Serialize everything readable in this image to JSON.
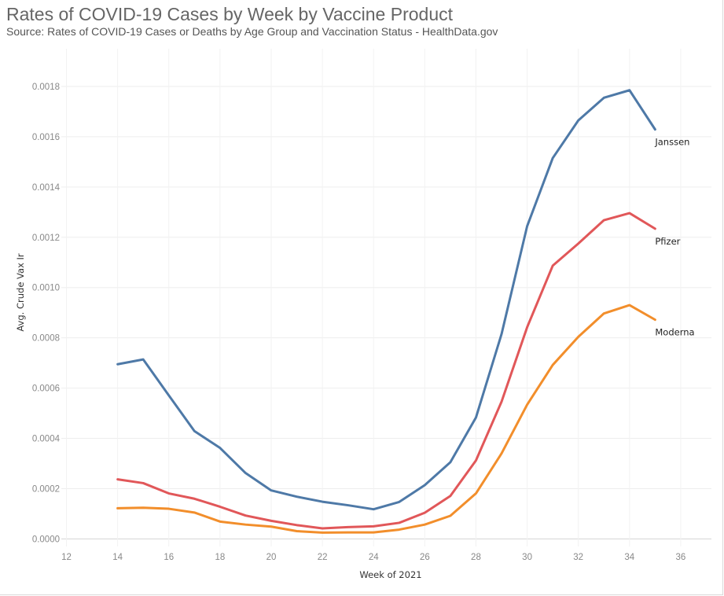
{
  "header": {
    "title": "Rates of COVID-19 Cases by Week by Vaccine Product",
    "subtitle": "Source: Rates of COVID-19 Cases or Deaths by Age Group and Vaccination Status - HealthData.gov"
  },
  "chart_data": {
    "type": "line",
    "title": "Rates of COVID-19 Cases by Week by Vaccine Product",
    "subtitle": "Source: Rates of COVID-19 Cases or Deaths by Age Group and Vaccination Status - HealthData.gov",
    "xlabel": "Week of 2021",
    "ylabel": "Avg. Crude Vax Ir",
    "xlim": [
      11.8,
      37.2
    ],
    "ylim": [
      -3e-05,
      0.00195
    ],
    "x_ticks": [
      12,
      14,
      16,
      18,
      20,
      22,
      24,
      26,
      28,
      30,
      32,
      34,
      36
    ],
    "y_ticks": [
      0.0,
      0.0002,
      0.0004,
      0.0006,
      0.0008,
      0.001,
      0.0012,
      0.0014,
      0.0016,
      0.0018
    ],
    "x_tick_labels": [
      "12",
      "14",
      "16",
      "18",
      "20",
      "22",
      "24",
      "26",
      "28",
      "30",
      "32",
      "34",
      "36"
    ],
    "y_tick_labels": [
      "0.0000",
      "0.0002",
      "0.0004",
      "0.0006",
      "0.0008",
      "0.0010",
      "0.0012",
      "0.0014",
      "0.0016",
      "0.0018"
    ],
    "grid": true,
    "legend": "direct labels at line ends",
    "x": [
      14,
      15,
      16,
      17,
      18,
      19,
      20,
      21,
      22,
      23,
      24,
      25,
      26,
      27,
      28,
      29,
      30,
      31,
      32,
      33,
      34,
      35
    ],
    "series": [
      {
        "name": "Janssen",
        "color": "#4e79a7",
        "values": [
          0.000695,
          0.000714,
          0.000571,
          0.000429,
          0.000362,
          0.000262,
          0.000193,
          0.000168,
          0.000148,
          0.000134,
          0.000118,
          0.000147,
          0.000214,
          0.000305,
          0.000483,
          0.000815,
          0.001244,
          0.001515,
          0.001665,
          0.001755,
          0.001785,
          0.001629
        ]
      },
      {
        "name": "Pfizer",
        "color": "#e15759",
        "values": [
          0.000237,
          0.000222,
          0.000181,
          0.00016,
          0.000128,
          9.3e-05,
          7.2e-05,
          5.5e-05,
          4.2e-05,
          4.7e-05,
          5e-05,
          6.4e-05,
          0.000104,
          0.000171,
          0.000312,
          0.000546,
          0.000842,
          0.001087,
          0.001175,
          0.001268,
          0.001296,
          0.001234
        ]
      },
      {
        "name": "Moderna",
        "color": "#f28e2b",
        "values": [
          0.000122,
          0.000124,
          0.00012,
          0.000105,
          6.9e-05,
          5.7e-05,
          4.9e-05,
          3.1e-05,
          2.5e-05,
          2.6e-05,
          2.6e-05,
          3.7e-05,
          5.7e-05,
          9.2e-05,
          0.000181,
          0.00034,
          0.000534,
          0.000692,
          0.000804,
          0.000897,
          0.00093,
          0.000872
        ]
      }
    ]
  }
}
